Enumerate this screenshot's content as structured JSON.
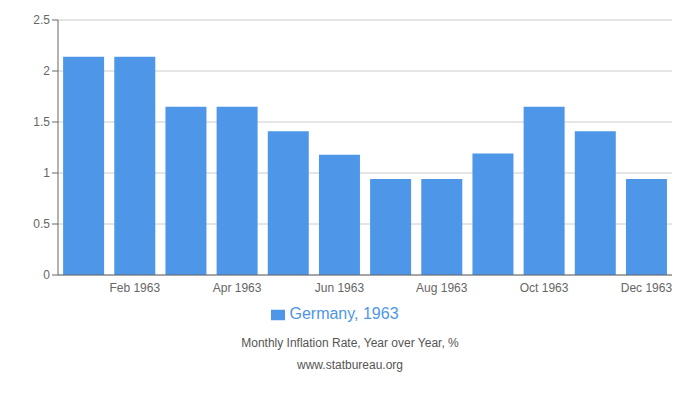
{
  "chart_data": {
    "type": "bar",
    "categories": [
      null,
      "Feb 1963",
      null,
      "Apr 1963",
      null,
      "Jun 1963",
      null,
      "Aug 1963",
      null,
      "Oct 1963",
      null,
      "Dec 1963"
    ],
    "series": [
      {
        "name": "Germany, 1963",
        "color": "#4d96e8",
        "values": [
          2.14,
          2.14,
          1.65,
          1.65,
          1.41,
          1.18,
          0.94,
          0.94,
          1.19,
          1.65,
          1.41,
          0.94
        ]
      }
    ],
    "ylim": [
      0,
      2.5
    ],
    "yticks": [
      0,
      0.5,
      1.0,
      1.5,
      2.0,
      2.5
    ],
    "grid": true,
    "legend": "bottom",
    "xlabel": "Monthly Inflation Rate, Year over Year, %",
    "annotations": [
      "www.statbureau.org"
    ]
  }
}
